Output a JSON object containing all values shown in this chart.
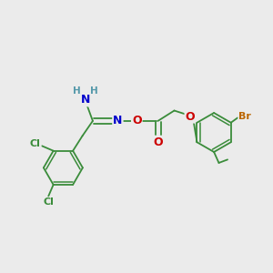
{
  "bg_color": "#ebebeb",
  "bond_color": "#3a8c3a",
  "bond_width": 1.3,
  "atom_colors": {
    "N": "#0000cc",
    "O": "#cc0000",
    "Cl": "#3a8c3a",
    "Br": "#bb6600",
    "H": "#5599aa",
    "C": "#3a8c3a"
  },
  "figsize": [
    3.0,
    3.0
  ],
  "dpi": 100,
  "xlim": [
    0,
    10
  ],
  "ylim": [
    0,
    10
  ]
}
